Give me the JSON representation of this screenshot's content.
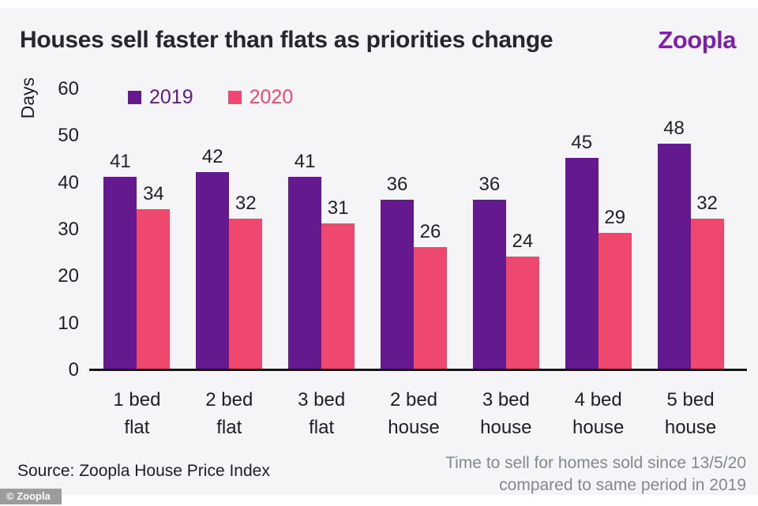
{
  "header": {
    "title": "Houses sell faster than flats as priorities change",
    "brand": "Zoopla"
  },
  "chart_data": {
    "type": "bar",
    "title": "Houses sell faster than flats as priorities change",
    "ylabel": "Days",
    "xlabel": "",
    "ylim": [
      0,
      60
    ],
    "yticks": [
      0,
      10,
      20,
      30,
      40,
      50,
      60
    ],
    "grid": false,
    "legend_position": "top-left-inside",
    "categories": [
      "1 bed flat",
      "2 bed flat",
      "3 bed flat",
      "2 bed house",
      "3 bed house",
      "4 bed house",
      "5 bed house"
    ],
    "category_lines": [
      [
        "1 bed",
        "flat"
      ],
      [
        "2 bed",
        "flat"
      ],
      [
        "3 bed",
        "flat"
      ],
      [
        "2 bed",
        "house"
      ],
      [
        "3 bed",
        "house"
      ],
      [
        "4 bed",
        "house"
      ],
      [
        "5 bed",
        "house"
      ]
    ],
    "series": [
      {
        "name": "2019",
        "color": "#64198f",
        "values": [
          41,
          42,
          41,
          36,
          36,
          45,
          48
        ]
      },
      {
        "name": "2020",
        "color": "#ef486f",
        "values": [
          34,
          32,
          31,
          26,
          24,
          29,
          32
        ]
      }
    ]
  },
  "colors": {
    "background_panel": "#f5f4f6",
    "brand_purple": "#7d22a8",
    "series_2019": "#64198f",
    "series_2020": "#ef486f",
    "axis": "#161616",
    "note_gray": "#84888f"
  },
  "footer": {
    "source": "Source: Zoopla House Price Index",
    "note_line1": "Time to sell for homes sold since 13/5/20",
    "note_line2": "compared to same period in 2019",
    "watermark": "© Zoopla"
  }
}
